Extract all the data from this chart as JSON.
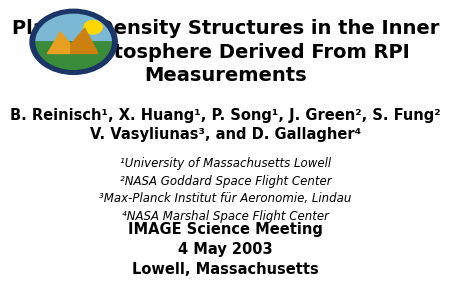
{
  "title_line1": "Plasma Density Structures in the Inner",
  "title_line2": "Magnetosphere Derived From RPI",
  "title_line3": "Measurements",
  "authors_line1": "B. Reinisch¹, X. Huang¹, P. Song¹, J. Green², S. Fung²",
  "authors_line2": "V. Vasyliunas³, and D. Gallagher⁴",
  "affil1": "¹University of Massachusetts Lowell",
  "affil2": "²NASA Goddard Space Flight Center",
  "affil3": "³Max-Planck Institut für Aeronomie, Lindau",
  "affil4": "⁴NASA Marshal Space Flight Center",
  "event_line1": "IMAGE Science Meeting",
  "event_line2": "4 May 2003",
  "event_line3": "Lowell, Massachusetts",
  "bg_color": "#ffffff",
  "text_color": "#000000",
  "title_fontsize": 14,
  "authors_fontsize": 10.5,
  "affil_fontsize": 8.5,
  "event_fontsize": 10.5
}
